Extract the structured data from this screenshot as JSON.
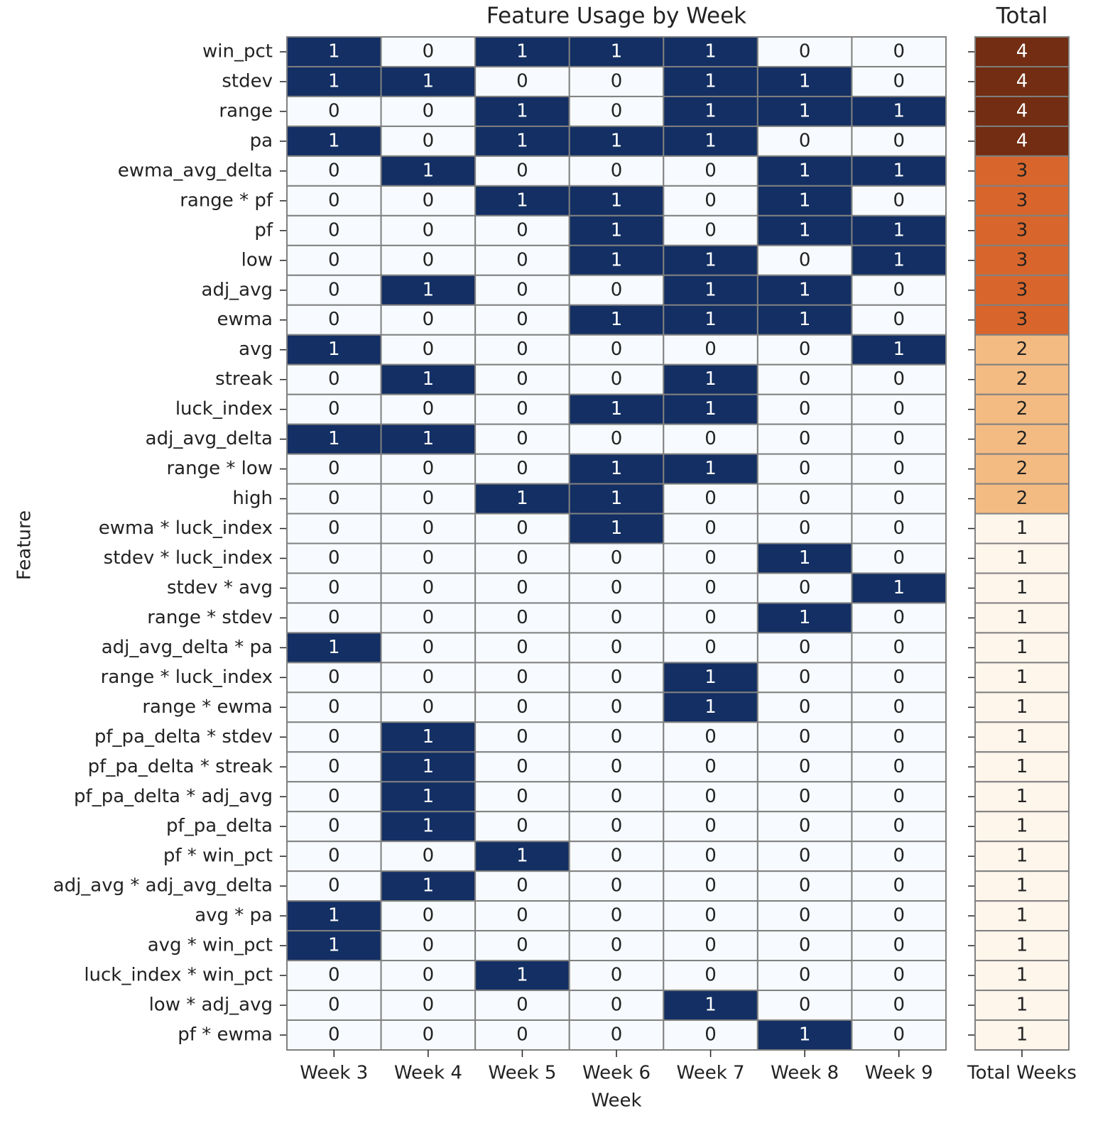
{
  "chart_data": [
    {
      "type": "heatmap",
      "title": "Feature Usage by Week",
      "x_label": "Week",
      "y_label": "Feature",
      "categories": [
        "Week 3",
        "Week 4",
        "Week 5",
        "Week 6",
        "Week 7",
        "Week 8",
        "Week 9"
      ],
      "rows": [
        "win_pct",
        "stdev",
        "range",
        "pa",
        "ewma_avg_delta",
        "range * pf",
        "pf",
        "low",
        "adj_avg",
        "ewma",
        "avg",
        "streak",
        "luck_index",
        "adj_avg_delta",
        "range * low",
        "high",
        "ewma * luck_index",
        "stdev * luck_index",
        "stdev * avg",
        "range * stdev",
        "adj_avg_delta * pa",
        "range * luck_index",
        "range * ewma",
        "pf_pa_delta * stdev",
        "pf_pa_delta * streak",
        "pf_pa_delta * adj_avg",
        "pf_pa_delta",
        "pf * win_pct",
        "adj_avg * adj_avg_delta",
        "avg * pa",
        "avg * win_pct",
        "luck_index * win_pct",
        "low * adj_avg",
        "pf * ewma"
      ],
      "values": [
        [
          1,
          0,
          1,
          1,
          1,
          0,
          0
        ],
        [
          1,
          1,
          0,
          0,
          1,
          1,
          0
        ],
        [
          0,
          0,
          1,
          0,
          1,
          1,
          1
        ],
        [
          1,
          0,
          1,
          1,
          1,
          0,
          0
        ],
        [
          0,
          1,
          0,
          0,
          0,
          1,
          1
        ],
        [
          0,
          0,
          1,
          1,
          0,
          1,
          0
        ],
        [
          0,
          0,
          0,
          1,
          0,
          1,
          1
        ],
        [
          0,
          0,
          0,
          1,
          1,
          0,
          1
        ],
        [
          0,
          1,
          0,
          0,
          1,
          1,
          0
        ],
        [
          0,
          0,
          0,
          1,
          1,
          1,
          0
        ],
        [
          1,
          0,
          0,
          0,
          0,
          0,
          1
        ],
        [
          0,
          1,
          0,
          0,
          1,
          0,
          0
        ],
        [
          0,
          0,
          0,
          1,
          1,
          0,
          0
        ],
        [
          1,
          1,
          0,
          0,
          0,
          0,
          0
        ],
        [
          0,
          0,
          0,
          1,
          1,
          0,
          0
        ],
        [
          0,
          0,
          1,
          1,
          0,
          0,
          0
        ],
        [
          0,
          0,
          0,
          1,
          0,
          0,
          0
        ],
        [
          0,
          0,
          0,
          0,
          0,
          1,
          0
        ],
        [
          0,
          0,
          0,
          0,
          0,
          0,
          1
        ],
        [
          0,
          0,
          0,
          0,
          0,
          1,
          0
        ],
        [
          1,
          0,
          0,
          0,
          0,
          0,
          0
        ],
        [
          0,
          0,
          0,
          0,
          1,
          0,
          0
        ],
        [
          0,
          0,
          0,
          0,
          1,
          0,
          0
        ],
        [
          0,
          1,
          0,
          0,
          0,
          0,
          0
        ],
        [
          0,
          1,
          0,
          0,
          0,
          0,
          0
        ],
        [
          0,
          1,
          0,
          0,
          0,
          0,
          0
        ],
        [
          0,
          1,
          0,
          0,
          0,
          0,
          0
        ],
        [
          0,
          0,
          1,
          0,
          0,
          0,
          0
        ],
        [
          0,
          1,
          0,
          0,
          0,
          0,
          0
        ],
        [
          1,
          0,
          0,
          0,
          0,
          0,
          0
        ],
        [
          1,
          0,
          0,
          0,
          0,
          0,
          0
        ],
        [
          0,
          0,
          1,
          0,
          0,
          0,
          0
        ],
        [
          0,
          0,
          0,
          0,
          1,
          0,
          0
        ],
        [
          0,
          0,
          0,
          0,
          0,
          1,
          0
        ]
      ],
      "vlim": [
        0,
        1
      ],
      "colors": [
        "#f7fbff",
        "#132f63"
      ]
    },
    {
      "type": "heatmap",
      "title": "Total",
      "categories": [
        "Total Weeks"
      ],
      "values": [
        [
          4
        ],
        [
          4
        ],
        [
          4
        ],
        [
          4
        ],
        [
          3
        ],
        [
          3
        ],
        [
          3
        ],
        [
          3
        ],
        [
          3
        ],
        [
          3
        ],
        [
          2
        ],
        [
          2
        ],
        [
          2
        ],
        [
          2
        ],
        [
          2
        ],
        [
          2
        ],
        [
          1
        ],
        [
          1
        ],
        [
          1
        ],
        [
          1
        ],
        [
          1
        ],
        [
          1
        ],
        [
          1
        ],
        [
          1
        ],
        [
          1
        ],
        [
          1
        ],
        [
          1
        ],
        [
          1
        ],
        [
          1
        ],
        [
          1
        ],
        [
          1
        ],
        [
          1
        ],
        [
          1
        ],
        [
          1
        ]
      ],
      "vlim": [
        1,
        4
      ],
      "colors": [
        "#fef5eb",
        "#f3bb82",
        "#d8662c",
        "#722d12"
      ]
    }
  ]
}
